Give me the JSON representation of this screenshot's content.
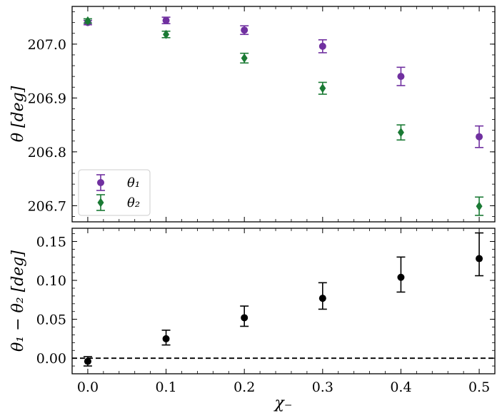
{
  "chart_data": [
    {
      "type": "scatter",
      "panel": "top",
      "ylabel": "θ [deg]",
      "xlabel": "",
      "xlim": [
        -0.02,
        0.52
      ],
      "ylim": [
        206.67,
        207.07
      ],
      "x_ticks": [
        0.0,
        0.1,
        0.2,
        0.3,
        0.4,
        0.5
      ],
      "y_ticks": [
        206.7,
        206.8,
        206.9,
        207.0
      ],
      "y_tick_labels": [
        "206.7",
        "206.8",
        "206.9",
        "207.0"
      ],
      "legend_position": "bottom-left",
      "grid": false,
      "series": [
        {
          "name": "θ₁",
          "color": "#7030a0",
          "marker": "circle",
          "x": [
            0.0,
            0.1,
            0.2,
            0.3,
            0.4,
            0.5
          ],
          "y": [
            207.04,
            207.044,
            207.026,
            206.996,
            206.94,
            206.828
          ],
          "err": [
            0.004,
            0.006,
            0.008,
            0.012,
            0.017,
            0.02
          ]
        },
        {
          "name": "θ₂",
          "color": "#1a7a34",
          "marker": "diamond",
          "x": [
            0.0,
            0.1,
            0.2,
            0.3,
            0.4,
            0.5
          ],
          "y": [
            207.043,
            207.018,
            206.974,
            206.918,
            206.836,
            206.699
          ],
          "err": [
            0.004,
            0.006,
            0.009,
            0.011,
            0.014,
            0.017
          ]
        }
      ]
    },
    {
      "type": "scatter",
      "panel": "bottom",
      "ylabel": "θ₁ − θ₂ [deg]",
      "xlabel": "χ₋",
      "xlim": [
        -0.02,
        0.52
      ],
      "ylim": [
        -0.02,
        0.167
      ],
      "x_ticks": [
        0.0,
        0.1,
        0.2,
        0.3,
        0.4,
        0.5
      ],
      "x_tick_labels": [
        "0.0",
        "0.1",
        "0.2",
        "0.3",
        "0.4",
        "0.5"
      ],
      "y_ticks": [
        0.0,
        0.05,
        0.1,
        0.15
      ],
      "y_tick_labels": [
        "0.00",
        "0.05",
        "0.10",
        "0.15"
      ],
      "reference_line": {
        "y": 0.0,
        "style": "dashed"
      },
      "grid": false,
      "series": [
        {
          "color": "#000000",
          "marker": "circle",
          "x": [
            0.0,
            0.1,
            0.2,
            0.3,
            0.4,
            0.5
          ],
          "y": [
            -0.004,
            0.025,
            0.052,
            0.077,
            0.104,
            0.128
          ],
          "err_low": [
            0.006,
            0.008,
            0.011,
            0.014,
            0.019,
            0.022
          ],
          "err_high": [
            0.006,
            0.011,
            0.015,
            0.02,
            0.026,
            0.033
          ]
        }
      ]
    }
  ]
}
